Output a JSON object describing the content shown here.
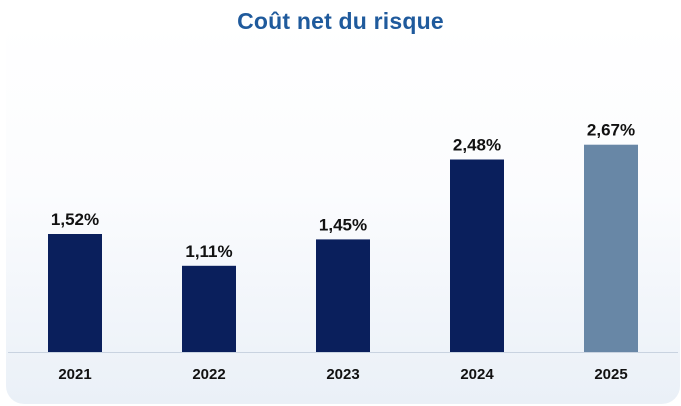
{
  "chart_data": {
    "type": "bar",
    "title": "Coût net du risque",
    "categories": [
      "2021",
      "2022",
      "2023",
      "2024",
      "2025"
    ],
    "values": [
      1.52,
      1.11,
      1.45,
      2.48,
      2.67
    ],
    "data_labels": [
      "1,52%",
      "1,11%",
      "1,45%",
      "2,48%",
      "2,67%"
    ],
    "unit": "%",
    "ylim": [
      0,
      3.8
    ],
    "grid": false,
    "legend": "none",
    "colors": {
      "bar": "#0a1f5c",
      "bar_highlight": "#6887a6",
      "title": "#1f5a9c",
      "baseline": "#c9d3e0"
    },
    "highlight_index": 4
  }
}
